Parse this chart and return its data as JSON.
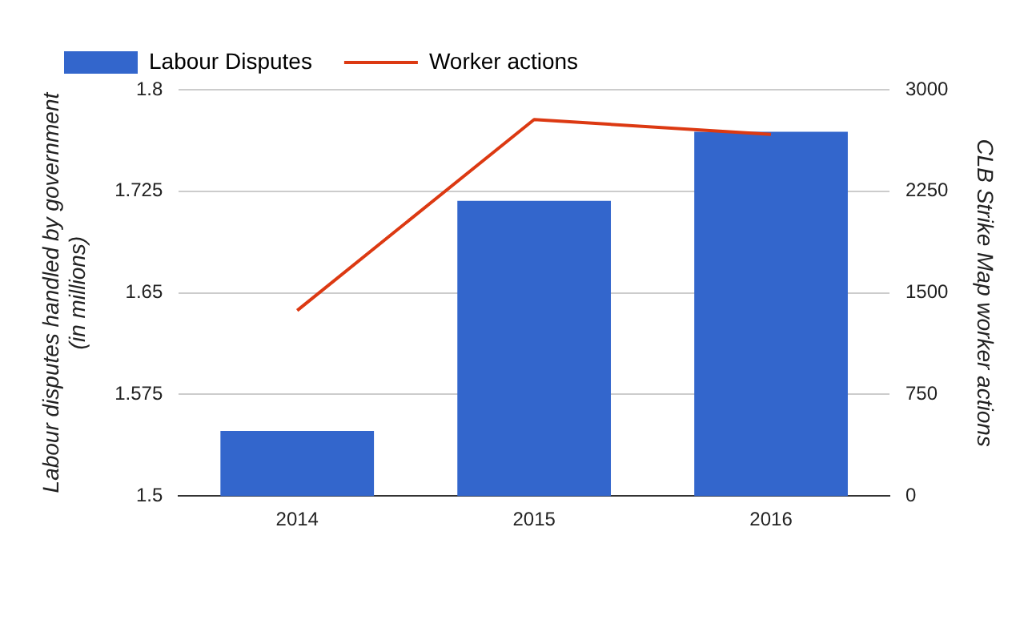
{
  "chart_data": {
    "type": "bar",
    "categories": [
      "2014",
      "2015",
      "2016"
    ],
    "series": [
      {
        "name": "Labour Disputes",
        "color": "#3366cc",
        "values": [
          1.548,
          1.718,
          1.769
        ]
      },
      {
        "name": "Worker actions",
        "type": "line",
        "axis": "y2",
        "color": "#dc3912",
        "values": [
          1370,
          2780,
          2670
        ]
      }
    ],
    "ylabel": "Labour disputes handled by government (in millions)",
    "y2label": "CLB Strike Map worker actions",
    "ylim": [
      1.5,
      1.8
    ],
    "yticks": [
      1.5,
      1.575,
      1.65,
      1.725,
      1.8
    ],
    "y2lim": [
      0,
      3000
    ],
    "y2ticks": [
      0,
      750,
      1500,
      2250,
      3000
    ],
    "grid": "y",
    "legend": "top left",
    "marker": "none"
  }
}
